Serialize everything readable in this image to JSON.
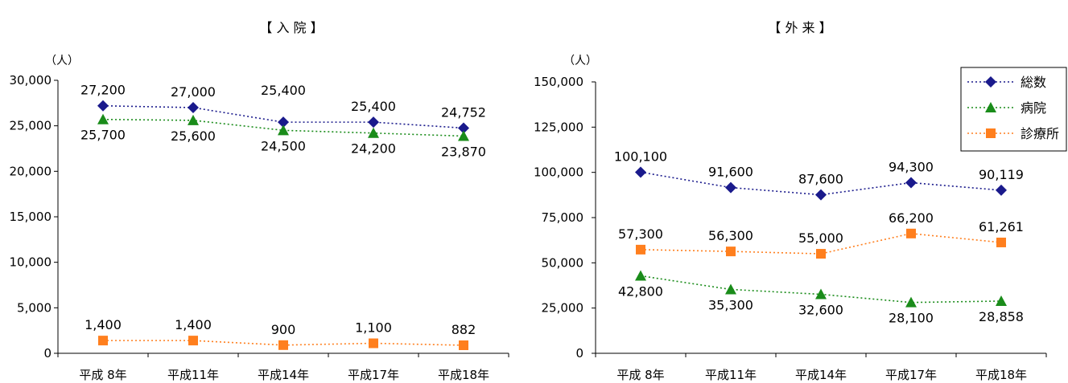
{
  "legend": {
    "placement": "top-right",
    "items": [
      {
        "label": "総数",
        "color": "#1a1a8c",
        "marker": "diamond"
      },
      {
        "label": "病院",
        "color": "#1a8c1a",
        "marker": "triangle"
      },
      {
        "label": "診療所",
        "color": "#ff7f1e",
        "marker": "square"
      }
    ]
  },
  "chart_data": [
    {
      "type": "line",
      "title": "【 入 院 】",
      "ylabel": "（人）",
      "categories": [
        "平成 8年",
        "平成11年",
        "平成14年",
        "平成17年",
        "平成18年"
      ],
      "ylim": [
        0,
        30000
      ],
      "yticks": [
        0,
        5000,
        10000,
        15000,
        20000,
        25000,
        30000
      ],
      "ytick_labels": [
        "0",
        "5,000",
        "10,000",
        "15,000",
        "20,000",
        "25,000",
        "30,000"
      ],
      "grid": false,
      "series": [
        {
          "name": "総数",
          "values": [
            27200,
            27000,
            25400,
            25400,
            24752
          ],
          "labels": [
            "27,200",
            "27,000",
            "25,400",
            "25,400",
            "24,752"
          ]
        },
        {
          "name": "病院",
          "values": [
            25700,
            25600,
            24500,
            24200,
            23870
          ],
          "labels": [
            "25,700",
            "25,600",
            "24,500",
            "24,200",
            "23,870"
          ]
        },
        {
          "name": "診療所",
          "values": [
            1400,
            1400,
            900,
            1100,
            882
          ],
          "labels": [
            "1,400",
            "1,400",
            "900",
            "1,100",
            "882"
          ]
        }
      ]
    },
    {
      "type": "line",
      "title": "【 外 来 】",
      "ylabel": "（人）",
      "categories": [
        "平成 8年",
        "平成11年",
        "平成14年",
        "平成17年",
        "平成18年"
      ],
      "ylim": [
        0,
        150000
      ],
      "yticks": [
        0,
        25000,
        50000,
        75000,
        100000,
        125000,
        150000
      ],
      "ytick_labels": [
        "0",
        "25,000",
        "50,000",
        "75,000",
        "100,000",
        "125,000",
        "150,000"
      ],
      "grid": false,
      "series": [
        {
          "name": "総数",
          "values": [
            100100,
            91600,
            87600,
            94300,
            90119
          ],
          "labels": [
            "100,100",
            "91,600",
            "87,600",
            "94,300",
            "90,119"
          ]
        },
        {
          "name": "病院",
          "values": [
            42800,
            35300,
            32600,
            28100,
            28858
          ],
          "labels": [
            "42,800",
            "35,300",
            "32,600",
            "28,100",
            "28,858"
          ]
        },
        {
          "name": "診療所",
          "values": [
            57300,
            56300,
            55000,
            66200,
            61261
          ],
          "labels": [
            "57,300",
            "56,300",
            "55,000",
            "66,200",
            "61,261"
          ]
        }
      ]
    }
  ]
}
